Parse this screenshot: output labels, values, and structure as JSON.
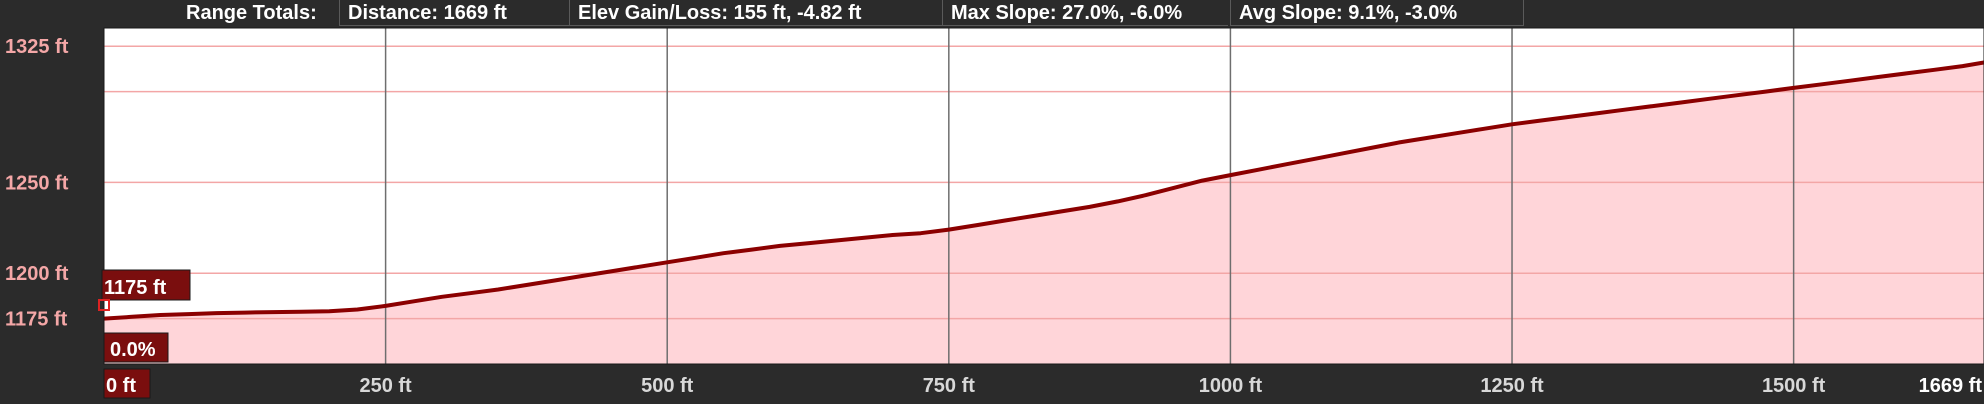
{
  "header": {
    "label": "Range Totals:",
    "distance": "Distance: 1669 ft",
    "elev": "Elev Gain/Loss: 155 ft, -4.82 ft",
    "max_slope": "Max Slope: 27.0%, -6.0%",
    "avg_slope": "Avg Slope: 9.1%, -3.0%"
  },
  "cursor": {
    "elevation_label": "1175 ft",
    "slope_label": "0.0%",
    "distance_label": "0 ft"
  },
  "colors": {
    "line": "#8b0000",
    "fill": "#ffd5d9",
    "grid_h": "#f3a6a6",
    "grid_v": "#6e6e6e"
  },
  "chart_data": {
    "type": "area",
    "title": "",
    "xlabel": "",
    "ylabel": "",
    "x_unit": "ft",
    "y_unit": "ft",
    "xlim": [
      0,
      1669
    ],
    "ylim": [
      1150,
      1335
    ],
    "x_ticks": [
      {
        "value": 250,
        "label": "250 ft"
      },
      {
        "value": 500,
        "label": "500 ft"
      },
      {
        "value": 750,
        "label": "750 ft"
      },
      {
        "value": 1000,
        "label": "1000 ft"
      },
      {
        "value": 1250,
        "label": "1250 ft"
      },
      {
        "value": 1500,
        "label": "1500 ft"
      },
      {
        "value": 1669,
        "label": "1669 ft"
      }
    ],
    "y_ticks": [
      {
        "value": 1175,
        "label": "1175 ft"
      },
      {
        "value": 1200,
        "label": "1200 ft"
      },
      {
        "value": 1250,
        "label": "1250 ft"
      },
      {
        "value": 1325,
        "label": "1325 ft"
      }
    ],
    "y_grid": [
      1175,
      1200,
      1250,
      1300,
      1325
    ],
    "grid": true,
    "series": [
      {
        "x": [
          0,
          25,
          50,
          75,
          100,
          125,
          150,
          175,
          200,
          225,
          250,
          275,
          300,
          325,
          350,
          375,
          400,
          425,
          450,
          475,
          500,
          525,
          550,
          575,
          600,
          625,
          650,
          675,
          700,
          725,
          750,
          775,
          800,
          825,
          850,
          875,
          900,
          925,
          950,
          975,
          1000,
          1025,
          1050,
          1075,
          1100,
          1125,
          1150,
          1175,
          1200,
          1225,
          1250,
          1275,
          1300,
          1325,
          1350,
          1375,
          1400,
          1425,
          1450,
          1475,
          1500,
          1525,
          1550,
          1575,
          1600,
          1625,
          1650,
          1669
        ],
        "y": [
          1175,
          1176,
          1177,
          1177.5,
          1178,
          1178.3,
          1178.6,
          1178.8,
          1179,
          1180,
          1182,
          1184.5,
          1187,
          1189,
          1191,
          1193.5,
          1196,
          1198.5,
          1201,
          1203.5,
          1206,
          1208.5,
          1211,
          1213,
          1215,
          1216.5,
          1218,
          1219.5,
          1221,
          1222,
          1224,
          1226.5,
          1229,
          1231.5,
          1234,
          1236.5,
          1239.5,
          1243,
          1247,
          1251,
          1254,
          1257,
          1260,
          1263,
          1266,
          1269,
          1272,
          1274.5,
          1277,
          1279.5,
          1282,
          1284,
          1286,
          1288,
          1290,
          1292,
          1294,
          1296,
          1298,
          1300,
          1302,
          1304,
          1306,
          1308,
          1310,
          1312,
          1314,
          1316
        ]
      }
    ]
  }
}
